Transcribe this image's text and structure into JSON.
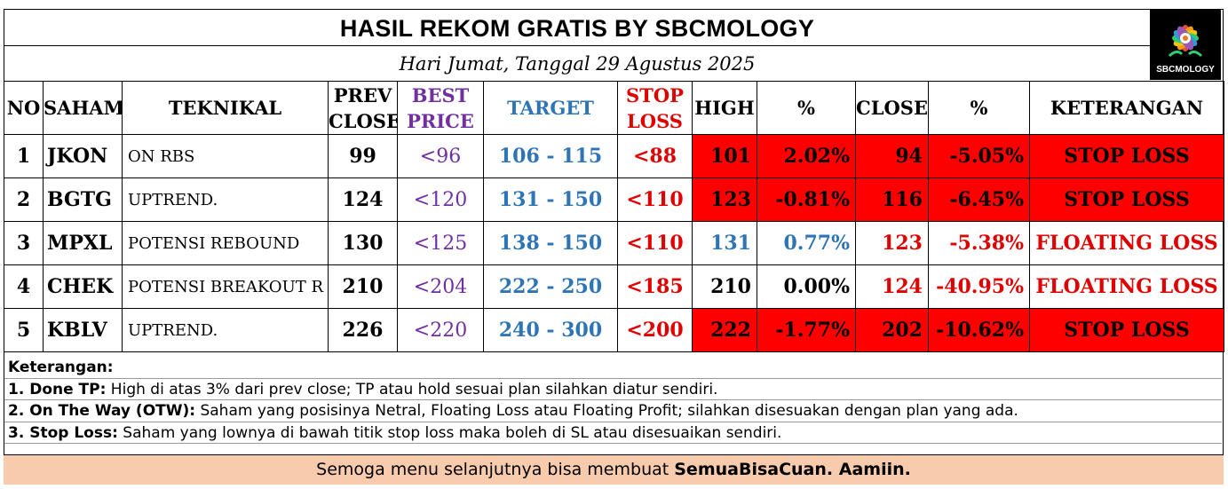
{
  "title": "HASIL REKOM GRATIS BY SBCMOLOGY",
  "subtitle": "Hari Jumat, Tanggal 29 Agustus 2025",
  "logo_text": "SBCMOLOGY",
  "headers": {
    "no": "NO",
    "saham": "SAHAM",
    "teknikal": "TEKNIKAL",
    "prev_close_1": "PREV",
    "prev_close_2": "CLOSE",
    "best_price_1": "BEST",
    "best_price_2": "PRICE",
    "target": "TARGET",
    "stop_loss_1": "STOP",
    "stop_loss_2": "LOSS",
    "high": "HIGH",
    "pct_high": "%",
    "close": "CLOSE",
    "pct_close": "%",
    "keterangan": "KETERANGAN"
  },
  "rows": [
    {
      "no": "1",
      "saham": "JKON",
      "teknikal": "ON RBS",
      "prev_close": "99",
      "best_price": "<96",
      "target": "106 - 115",
      "stop_loss": "<88",
      "high": "101",
      "pct_high": "2.02%",
      "close": "94",
      "pct_close": "-5.05%",
      "keterangan": "STOP LOSS"
    },
    {
      "no": "2",
      "saham": "BGTG",
      "teknikal": "UPTREND.",
      "prev_close": "124",
      "best_price": "<120",
      "target": "131 - 150",
      "stop_loss": "<110",
      "high": "123",
      "pct_high": "-0.81%",
      "close": "116",
      "pct_close": "-6.45%",
      "keterangan": "STOP LOSS"
    },
    {
      "no": "3",
      "saham": "MPXL",
      "teknikal": "POTENSI REBOUND",
      "prev_close": "130",
      "best_price": "<125",
      "target": "138 - 150",
      "stop_loss": "<110",
      "high": "131",
      "pct_high": "0.77%",
      "close": "123",
      "pct_close": "-5.38%",
      "keterangan": "FLOATING LOSS"
    },
    {
      "no": "4",
      "saham": "CHEK",
      "teknikal": "POTENSI BREAKOUT R",
      "prev_close": "210",
      "best_price": "<204",
      "target": "222 - 250",
      "stop_loss": "<185",
      "high": "210",
      "pct_high": "0.00%",
      "close": "124",
      "pct_close": "-40.95%",
      "keterangan": "FLOATING LOSS"
    },
    {
      "no": "5",
      "saham": "KBLV",
      "teknikal": "UPTREND.",
      "prev_close": "226",
      "best_price": "<220",
      "target": "240 - 300",
      "stop_loss": "<200",
      "high": "222",
      "pct_high": "-1.77%",
      "close": "202",
      "pct_close": "-10.62%",
      "keterangan": "STOP LOSS"
    }
  ],
  "notes": {
    "heading": "Keterangan:",
    "items": [
      {
        "label": "1. Done TP:",
        "text": " High di atas 3% dari prev close; TP atau hold sesuai plan silahkan diatur sendiri."
      },
      {
        "label": "2. On The Way (OTW):",
        "text": " Saham yang posisinya Netral, Floating Loss atau Floating Profit; silahkan disesuakan dengan plan yang ada."
      },
      {
        "label": "3. Stop Loss:",
        "text": " Saham yang lownya di bawah titik stop loss maka boleh di SL atau disesuaikan sendiri."
      }
    ]
  },
  "footer": {
    "text": "Semoga menu selanjutnya bisa membuat ",
    "bold": "SemuaBisaCuan. Aamiin."
  },
  "colors": {
    "stop_loss_fill": "#ff0000",
    "best_price": "#7030a0",
    "target": "#2e75b6",
    "stop_loss_text": "#e00000",
    "footer_bg": "#f8cbad"
  }
}
